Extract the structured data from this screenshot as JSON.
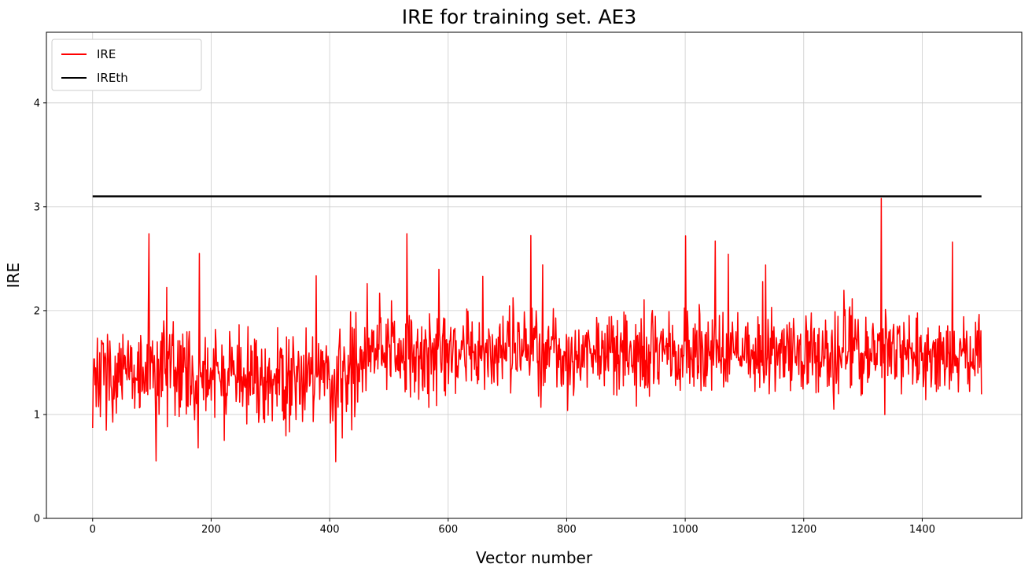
{
  "chart_data": {
    "type": "line",
    "title": "IRE for training set. AE3",
    "xlabel": "Vector number",
    "ylabel": "IRE",
    "x_ticks": [
      0,
      200,
      400,
      600,
      800,
      1000,
      1200,
      1400
    ],
    "y_ticks": [
      0,
      1,
      2,
      3,
      4
    ],
    "x_range": [
      -78,
      1568
    ],
    "y_range": [
      0,
      4.68
    ],
    "grid": true,
    "grid_color": "#cccccc",
    "background_color": "#ffffff",
    "frame_color": "#000000",
    "legend_position": "upper-left",
    "series": [
      {
        "name": "IRE",
        "type": "noisy-line",
        "color": "#ff0000",
        "line_width": 1.5,
        "n": 1500,
        "x_start": 0,
        "x_end": 1500,
        "model": {
          "seed": 7,
          "segments": [
            {
              "from": 0,
              "to": 450,
              "mean": 1.38,
              "spread": 0.55,
              "min": 0.45
            },
            {
              "from": 450,
              "to": 1500,
              "mean": 1.6,
              "spread": 0.48,
              "min": 0.72
            }
          ],
          "max": 2.78,
          "peak_prob": 0.015,
          "peak_add_base": 0.5,
          "peak_add_rand": 0.4,
          "dip_prob": 0.01,
          "dip_sub": 0.5,
          "special_points": [
            [
              95,
              2.74
            ],
            [
              180,
              2.55
            ],
            [
              530,
              2.74
            ],
            [
              1000,
              2.72
            ],
            [
              1050,
              2.67
            ],
            [
              1330,
              3.08
            ],
            [
              1450,
              2.66
            ]
          ]
        },
        "summary": {
          "approx_mean": 1.5,
          "min": 0.45,
          "max": 3.08
        }
      },
      {
        "name": "IREth",
        "type": "hline",
        "color": "#000000",
        "line_width": 2.5,
        "value": 3.1,
        "x_start": 0,
        "x_end": 1500
      }
    ]
  }
}
